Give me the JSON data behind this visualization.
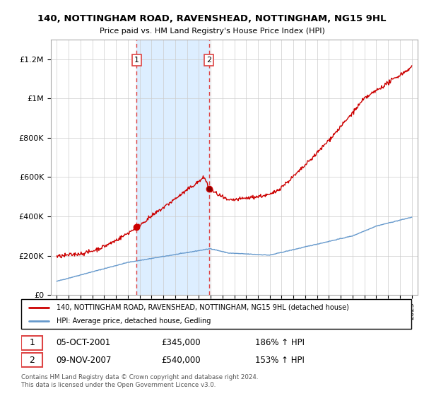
{
  "title": "140, NOTTINGHAM ROAD, RAVENSHEAD, NOTTINGHAM, NG15 9HL",
  "subtitle": "Price paid vs. HM Land Registry's House Price Index (HPI)",
  "legend_line1": "140, NOTTINGHAM ROAD, RAVENSHEAD, NOTTINGHAM, NG15 9HL (detached house)",
  "legend_line2": "HPI: Average price, detached house, Gedling",
  "footnote": "Contains HM Land Registry data © Crown copyright and database right 2024.\nThis data is licensed under the Open Government Licence v3.0.",
  "sale1_label": "1",
  "sale1_date": "05-OCT-2001",
  "sale1_price": "£345,000",
  "sale1_hpi": "186% ↑ HPI",
  "sale2_label": "2",
  "sale2_date": "09-NOV-2007",
  "sale2_price": "£540,000",
  "sale2_hpi": "153% ↑ HPI",
  "sale1_x": 2001.75,
  "sale1_y": 345000,
  "sale2_x": 2007.85,
  "sale2_y": 540000,
  "vline1_x": 2001.75,
  "vline2_x": 2007.85,
  "red_color": "#cc0000",
  "blue_color": "#6699cc",
  "vline_color": "#dd4444",
  "highlight_color": "#ddeeff",
  "ylim": [
    0,
    1300000
  ],
  "xlim": [
    1994.5,
    2025.5
  ]
}
